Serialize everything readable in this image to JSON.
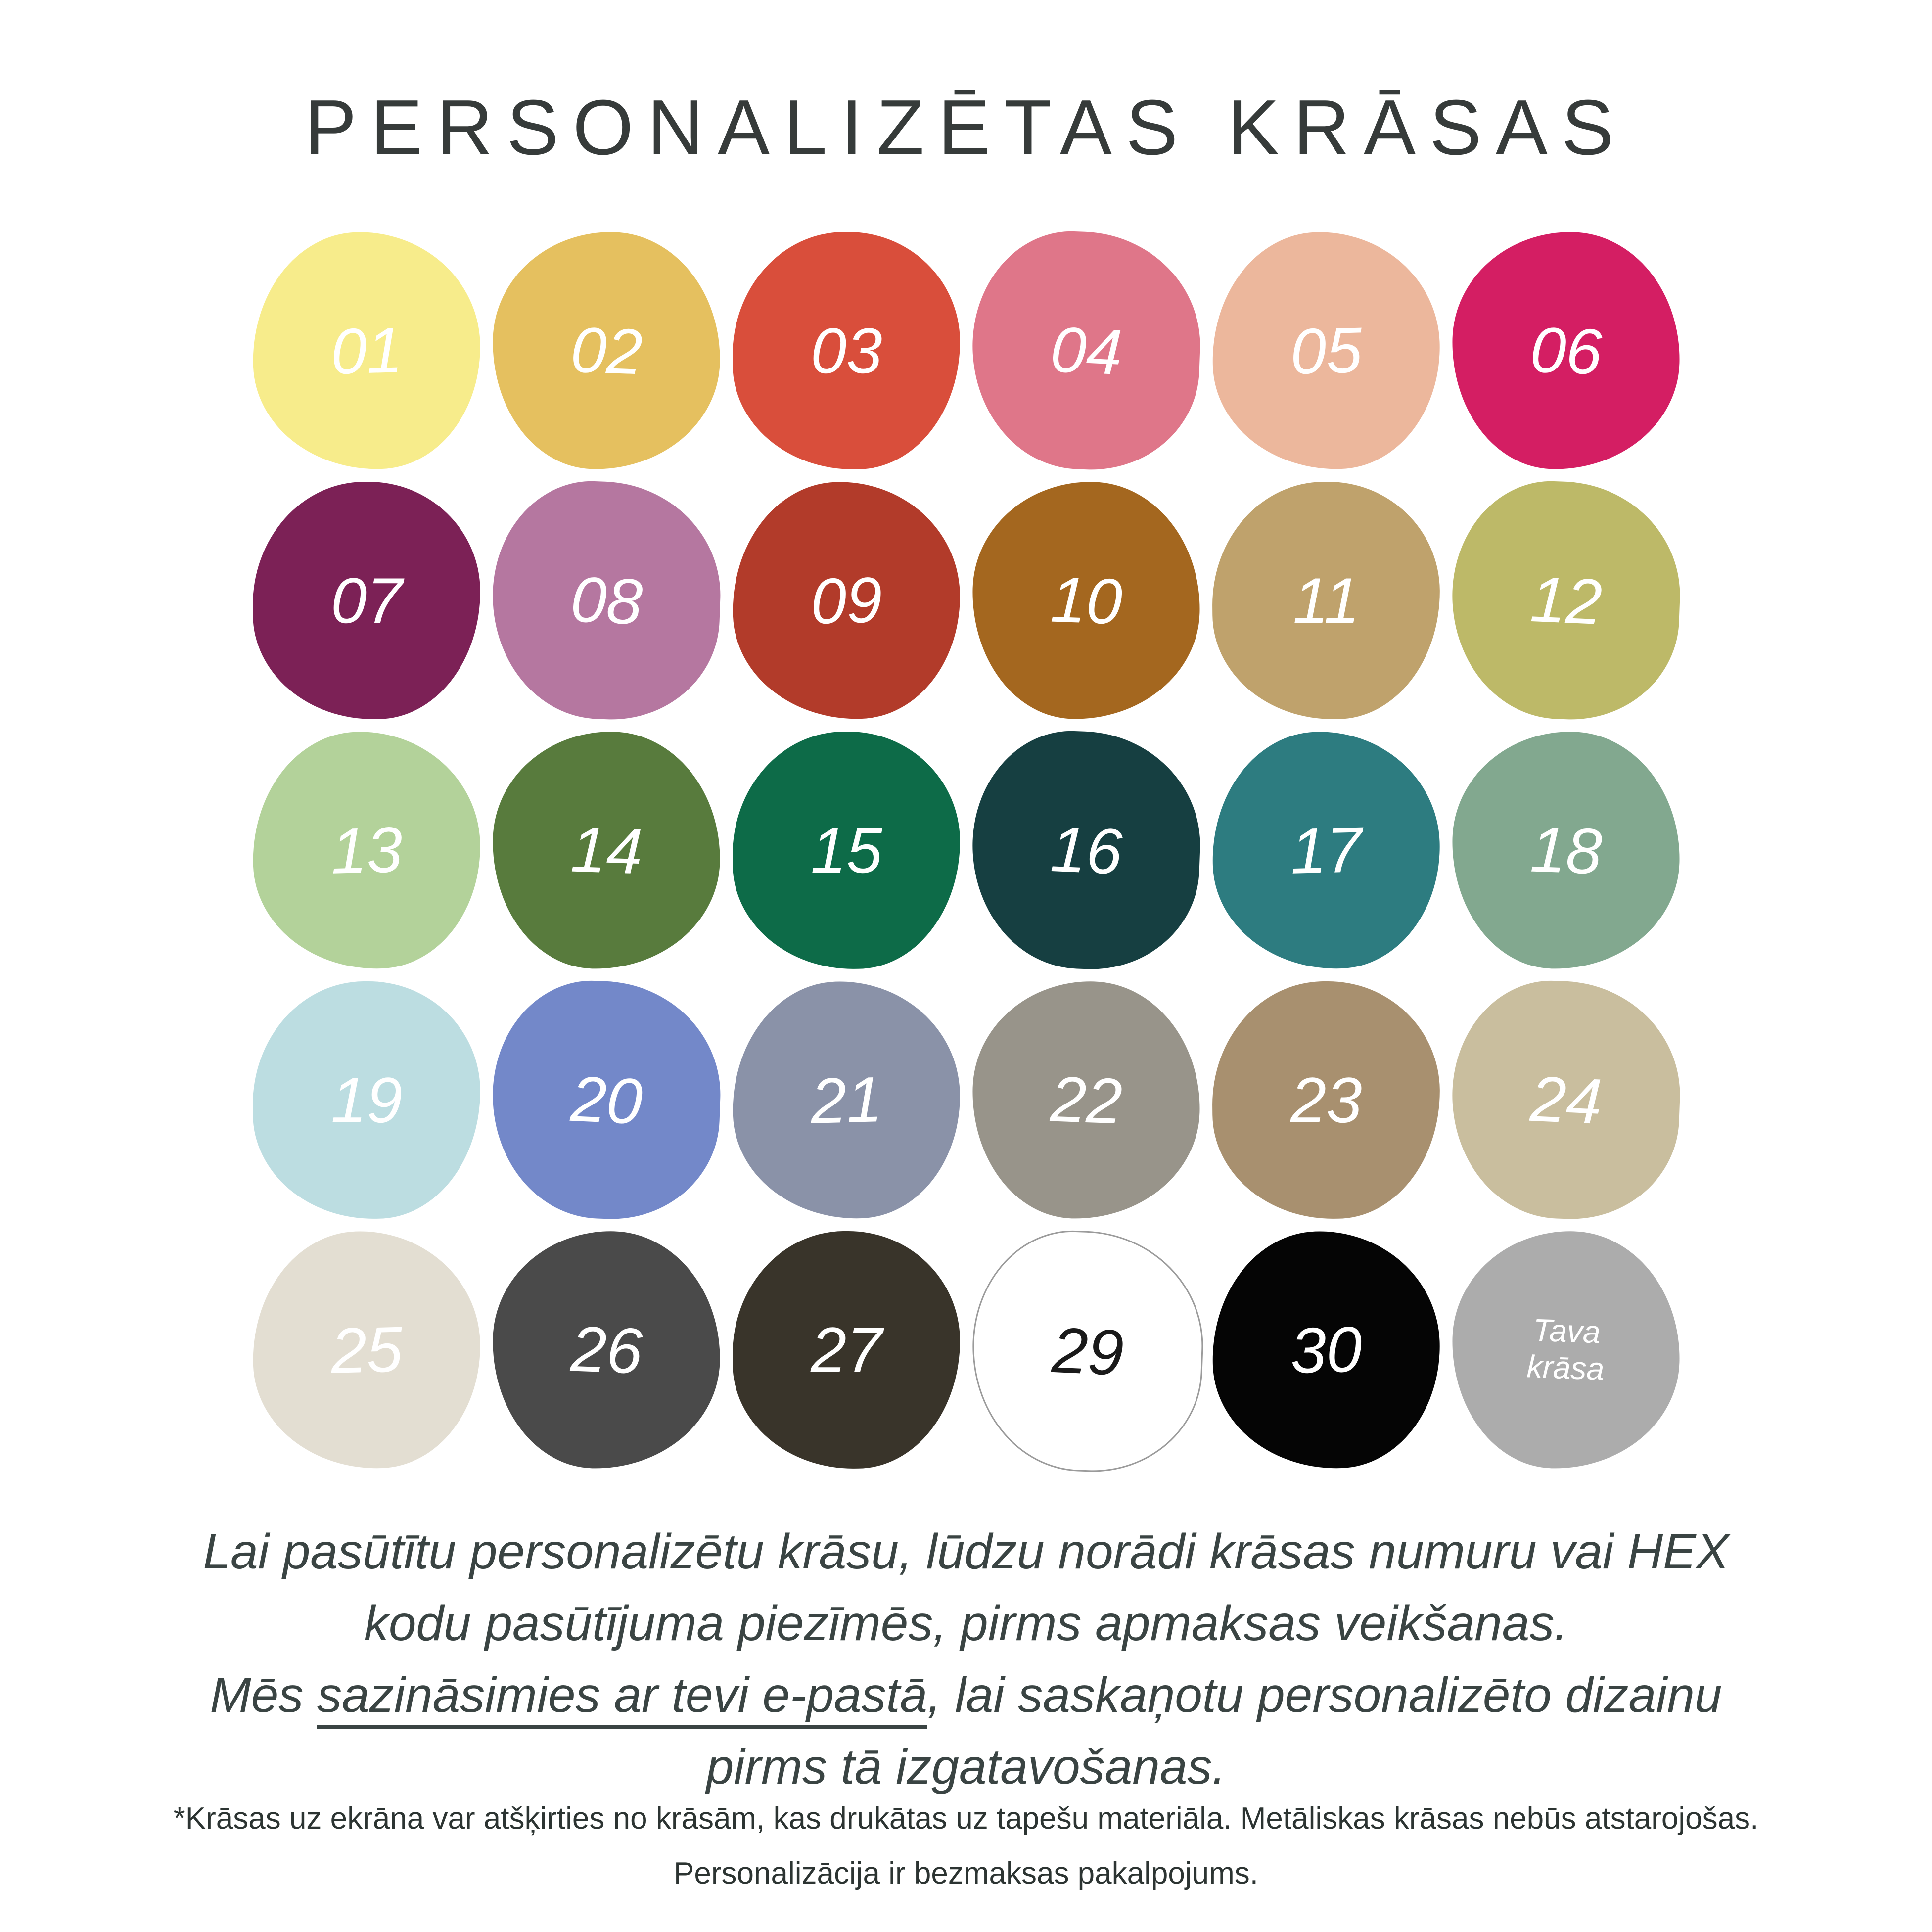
{
  "title": "PERSONALIZĒTAS KRĀSAS",
  "swatches": [
    {
      "label": "01",
      "color": "#F7EC8B",
      "text": "#FFFFFF"
    },
    {
      "label": "02",
      "color": "#E5C05F",
      "text": "#FFFFFF"
    },
    {
      "label": "03",
      "color": "#D94E3B",
      "text": "#FFFFFF"
    },
    {
      "label": "04",
      "color": "#DF7689",
      "text": "#FFFFFF"
    },
    {
      "label": "05",
      "color": "#ECB79C",
      "text": "#FFFFFF"
    },
    {
      "label": "06",
      "color": "#D41E63",
      "text": "#FFFFFF"
    },
    {
      "label": "07",
      "color": "#7C2156",
      "text": "#FFFFFF"
    },
    {
      "label": "08",
      "color": "#B577A0",
      "text": "#FFFFFF"
    },
    {
      "label": "09",
      "color": "#B23B2A",
      "text": "#FFFFFF"
    },
    {
      "label": "10",
      "color": "#A4671F",
      "text": "#FFFFFF"
    },
    {
      "label": "11",
      "color": "#BFA26C",
      "text": "#FFFFFF"
    },
    {
      "label": "12",
      "color": "#BDB968",
      "text": "#FFFFFF"
    },
    {
      "label": "13",
      "color": "#B3D29A",
      "text": "#FFFFFF"
    },
    {
      "label": "14",
      "color": "#587B3D",
      "text": "#FFFFFF"
    },
    {
      "label": "15",
      "color": "#0D6B48",
      "text": "#FFFFFF"
    },
    {
      "label": "16",
      "color": "#163F41",
      "text": "#FFFFFF"
    },
    {
      "label": "17",
      "color": "#2D7C80",
      "text": "#FFFFFF"
    },
    {
      "label": "18",
      "color": "#82A88F",
      "text": "#FFFFFF"
    },
    {
      "label": "19",
      "color": "#BCDDE1",
      "text": "#FFFFFF"
    },
    {
      "label": "20",
      "color": "#7388C9",
      "text": "#FFFFFF"
    },
    {
      "label": "21",
      "color": "#8A92A8",
      "text": "#FFFFFF"
    },
    {
      "label": "22",
      "color": "#98948A",
      "text": "#FFFFFF"
    },
    {
      "label": "23",
      "color": "#A8906F",
      "text": "#FFFFFF"
    },
    {
      "label": "24",
      "color": "#C9BE9E",
      "text": "#FFFFFF"
    },
    {
      "label": "25",
      "color": "#E3DED2",
      "text": "#FFFFFF"
    },
    {
      "label": "26",
      "color": "#4A4A4A",
      "text": "#FFFFFF"
    },
    {
      "label": "27",
      "color": "#39342A",
      "text": "#FFFFFF"
    },
    {
      "label": "29",
      "color": "#FFFFFF",
      "text": "#1A1A1A",
      "outlined": true
    },
    {
      "label": "30",
      "color": "#050505",
      "text": "#FFFFFF"
    },
    {
      "label": "Tava\nkrāsa",
      "color": "#ACACAC",
      "text": "#FFFFFF",
      "small": true
    }
  ],
  "description": {
    "line1": "Lai pasūtītu personalizētu krāsu, lūdzu norādi krāsas numuru vai HEX",
    "line2": "kodu pasūtījuma piezīmēs, pirms apmaksas veikšanas.",
    "line3_prefix": "Mēs ",
    "line3_underlined": "sazināsimies ar tevi e-pastā",
    "line3_suffix": ", lai saskaņotu personalizēto dizainu",
    "line4": "pirms tā izgatavošanas."
  },
  "footnote": {
    "line1": "*Krāsas uz ekrāna var atšķirties no krāsām, kas drukātas uz tapešu materiāla. Metāliskas krāsas nebūs atstarojošas.",
    "line2": "Personalizācija ir bezmaksas pakalpojums."
  }
}
